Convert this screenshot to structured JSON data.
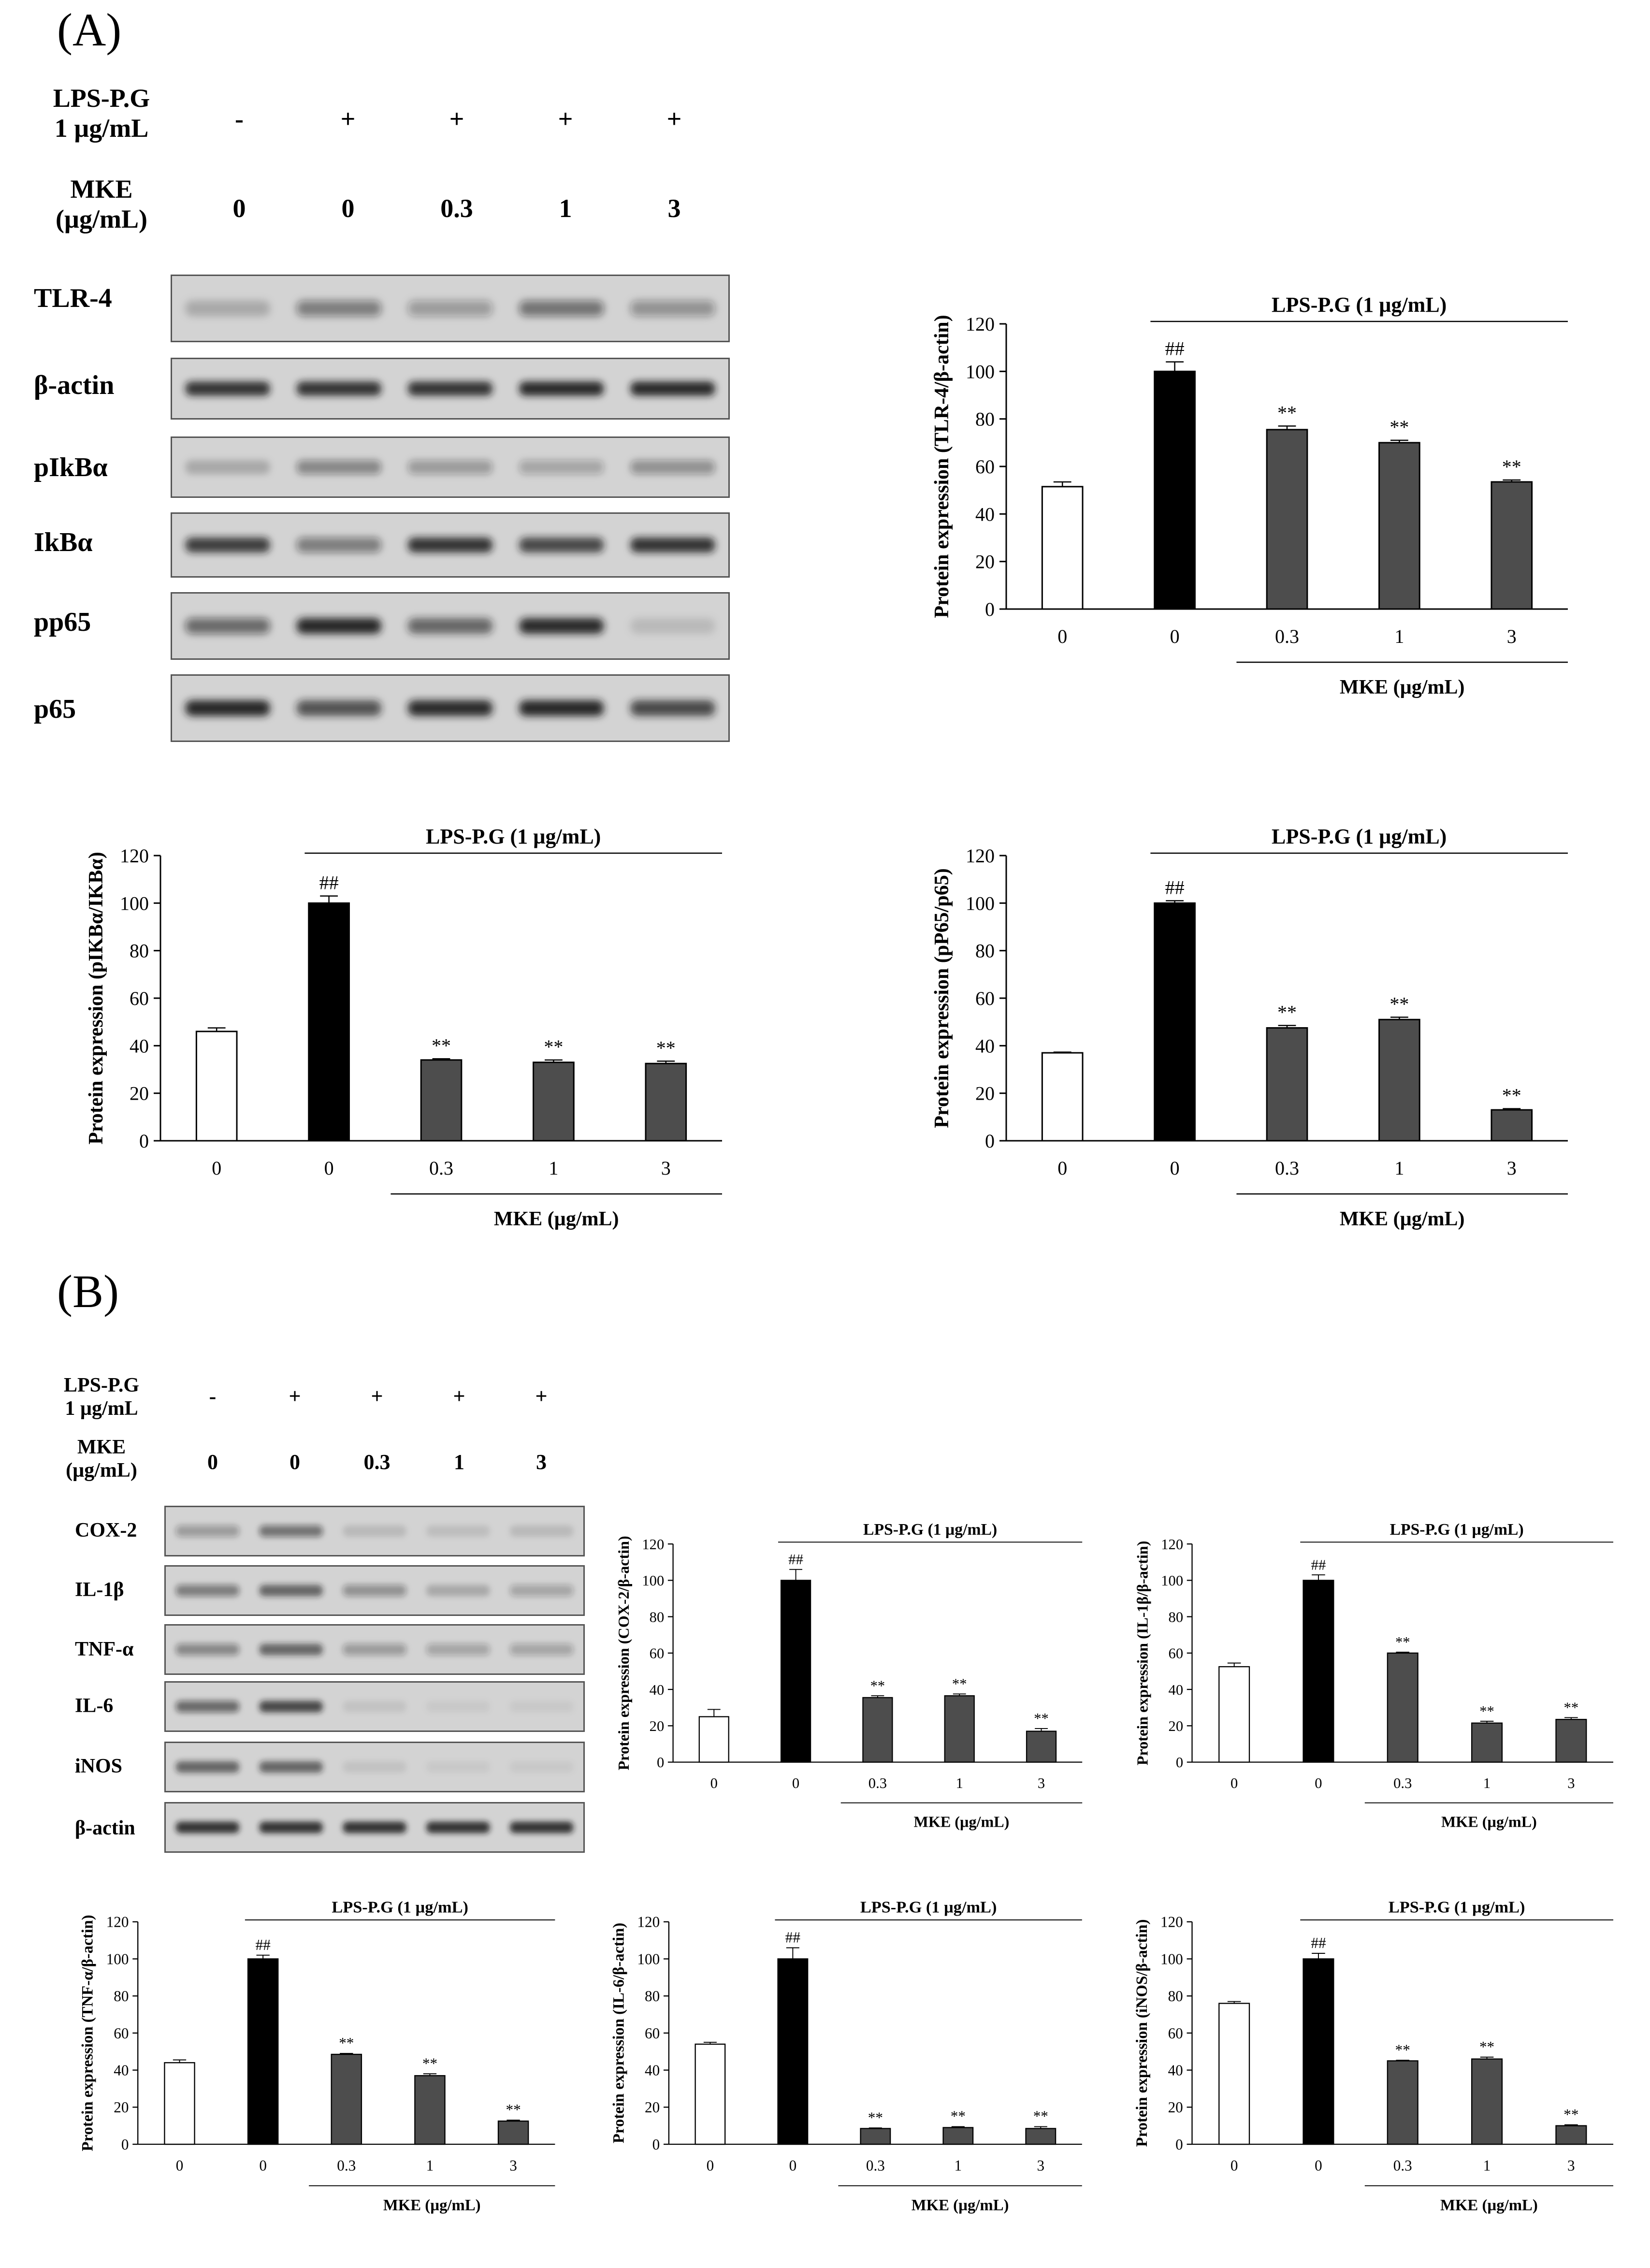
{
  "figure": {
    "panel_a_label": "(A)",
    "panel_b_label": "(B)"
  },
  "colors": {
    "bar_control": "#ffffff",
    "bar_lps": "#000000",
    "bar_treated": "#4d4d4d",
    "band": "#1a1a1a",
    "blot_bg": "#d3d3d3"
  },
  "panel_a": {
    "condition_rows": [
      {
        "label_line1": "LPS-P.G",
        "label_line2": "1 µg/mL",
        "values": [
          "-",
          "+",
          "+",
          "+",
          "+"
        ]
      },
      {
        "label_line1": "MKE",
        "label_line2": "(µg/mL)",
        "values": [
          "0",
          "0",
          "0.3",
          "1",
          "3"
        ]
      }
    ],
    "blot_labels": [
      "TLR-4",
      "β-actin",
      "pIkBα",
      "IkBα",
      "pp65",
      "p65"
    ],
    "band_intensity": [
      [
        0.2,
        0.45,
        0.3,
        0.5,
        0.35
      ],
      [
        0.85,
        0.85,
        0.85,
        0.9,
        0.9
      ],
      [
        0.2,
        0.4,
        0.3,
        0.25,
        0.35
      ],
      [
        0.8,
        0.45,
        0.85,
        0.75,
        0.85
      ],
      [
        0.55,
        0.95,
        0.6,
        0.9,
        0.12
      ],
      [
        0.95,
        0.7,
        0.9,
        0.95,
        0.75
      ]
    ]
  },
  "panel_b": {
    "condition_rows": [
      {
        "label_line1": "LPS-P.G",
        "label_line2": "1 µg/mL",
        "values": [
          "-",
          "+",
          "+",
          "+",
          "+"
        ]
      },
      {
        "label_line1": "MKE",
        "label_line2": "(µg/mL)",
        "values": [
          "0",
          "0",
          "0.3",
          "1",
          "3"
        ]
      }
    ],
    "blot_labels": [
      "COX-2",
      "IL-1β",
      "TNF-α",
      "IL-6",
      "iNOS",
      "β-actin"
    ],
    "band_intensity": [
      [
        0.3,
        0.5,
        0.12,
        0.1,
        0.12
      ],
      [
        0.45,
        0.6,
        0.35,
        0.2,
        0.25
      ],
      [
        0.4,
        0.6,
        0.3,
        0.25,
        0.25
      ],
      [
        0.55,
        0.75,
        0.08,
        0.05,
        0.05
      ],
      [
        0.6,
        0.6,
        0.08,
        0.05,
        0.05
      ],
      [
        0.85,
        0.85,
        0.85,
        0.85,
        0.85
      ]
    ]
  },
  "chart_data": [
    {
      "type": "bar",
      "title": "LPS-P.G (1 µg/mL)",
      "ylabel": "Protein expression (TLR-4/β-actin)",
      "xlabel": "MKE (µg/mL)",
      "categories": [
        "0",
        "0",
        "0.3",
        "1",
        "3"
      ],
      "values": [
        51.5,
        100,
        75.5,
        70,
        53.5
      ],
      "errors": [
        2,
        4,
        1.5,
        1,
        0.8
      ],
      "annotations": [
        "",
        "##",
        "**",
        "**",
        "**"
      ],
      "ylim": [
        0,
        120
      ],
      "yticks": [
        "0",
        "20",
        "40",
        "60",
        "80",
        "100",
        "120"
      ]
    },
    {
      "type": "bar",
      "title": "LPS-P.G (1 µg/mL)",
      "ylabel": "Protein expression (pIKBα/IKBα)",
      "xlabel": "MKE (µg/mL)",
      "categories": [
        "0",
        "0",
        "0.3",
        "1",
        "3"
      ],
      "values": [
        46,
        100,
        34,
        33,
        32.5
      ],
      "errors": [
        1.5,
        3,
        0.5,
        1,
        1
      ],
      "annotations": [
        "",
        "##",
        "**",
        "**",
        "**"
      ],
      "ylim": [
        0,
        120
      ],
      "yticks": [
        "0",
        "20",
        "40",
        "60",
        "80",
        "100",
        "120"
      ]
    },
    {
      "type": "bar",
      "title": "LPS-P.G (1 µg/mL)",
      "ylabel": "Protein expression (pP65/p65)",
      "xlabel": "MKE (µg/mL)",
      "categories": [
        "0",
        "0",
        "0.3",
        "1",
        "3"
      ],
      "values": [
        37,
        100,
        47.5,
        51,
        13
      ],
      "errors": [
        0.3,
        1,
        1,
        1,
        0.5
      ],
      "annotations": [
        "",
        "##",
        "**",
        "**",
        "**"
      ],
      "ylim": [
        0,
        120
      ],
      "yticks": [
        "0",
        "20",
        "40",
        "60",
        "80",
        "100",
        "120"
      ]
    },
    {
      "type": "bar",
      "title": "LPS-P.G (1 µg/mL)",
      "ylabel": "Protein expression (COX-2/β-actin)",
      "xlabel": "MKE (µg/mL)",
      "categories": [
        "0",
        "0",
        "0.3",
        "1",
        "3"
      ],
      "values": [
        25,
        100,
        35.5,
        36.5,
        17
      ],
      "errors": [
        4,
        6,
        1,
        1,
        1.5
      ],
      "annotations": [
        "",
        "##",
        "**",
        "**",
        "**"
      ],
      "ylim": [
        0,
        120
      ],
      "yticks": [
        "0",
        "20",
        "40",
        "60",
        "80",
        "100",
        "120"
      ]
    },
    {
      "type": "bar",
      "title": "LPS-P.G (1 µg/mL)",
      "ylabel": "Protein expression (IL-1β/β-actin)",
      "xlabel": "MKE (µg/mL)",
      "categories": [
        "0",
        "0",
        "0.3",
        "1",
        "3"
      ],
      "values": [
        52.5,
        100,
        60,
        21.5,
        23.5
      ],
      "errors": [
        2,
        3,
        0.5,
        1,
        1
      ],
      "annotations": [
        "",
        "##",
        "**",
        "**",
        "**"
      ],
      "ylim": [
        0,
        120
      ],
      "yticks": [
        "0",
        "20",
        "40",
        "60",
        "80",
        "100",
        "120"
      ]
    },
    {
      "type": "bar",
      "title": "LPS-P.G (1 µg/mL)",
      "ylabel": "Protein expression (TNF-α/β-actin)",
      "xlabel": "MKE (µg/mL)",
      "categories": [
        "0",
        "0",
        "0.3",
        "1",
        "3"
      ],
      "values": [
        44,
        100,
        48.5,
        37,
        12.5
      ],
      "errors": [
        1.5,
        2,
        0.5,
        1,
        0.5
      ],
      "annotations": [
        "",
        "##",
        "**",
        "**",
        "**"
      ],
      "ylim": [
        0,
        120
      ],
      "yticks": [
        "0",
        "20",
        "40",
        "60",
        "80",
        "100",
        "120"
      ]
    },
    {
      "type": "bar",
      "title": "LPS-P.G (1 µg/mL)",
      "ylabel": "Protein expression (IL-6/β-actin)",
      "xlabel": "MKE (µg/mL)",
      "categories": [
        "0",
        "0",
        "0.3",
        "1",
        "3"
      ],
      "values": [
        54,
        100,
        8.5,
        9,
        8.5
      ],
      "errors": [
        1,
        6,
        0.3,
        0.5,
        1
      ],
      "annotations": [
        "",
        "##",
        "**",
        "**",
        "**"
      ],
      "ylim": [
        0,
        120
      ],
      "yticks": [
        "0",
        "20",
        "40",
        "60",
        "80",
        "100",
        "120"
      ]
    },
    {
      "type": "bar",
      "title": "LPS-P.G (1 µg/mL)",
      "ylabel": "Protein expression (iNOS/β-actin)",
      "xlabel": "MKE (µg/mL)",
      "categories": [
        "0",
        "0",
        "0.3",
        "1",
        "3"
      ],
      "values": [
        76,
        100,
        45,
        46,
        10
      ],
      "errors": [
        1,
        3,
        0.3,
        1,
        0.5
      ],
      "annotations": [
        "",
        "##",
        "**",
        "**",
        "**"
      ],
      "ylim": [
        0,
        120
      ],
      "yticks": [
        "0",
        "20",
        "40",
        "60",
        "80",
        "100",
        "120"
      ]
    }
  ]
}
